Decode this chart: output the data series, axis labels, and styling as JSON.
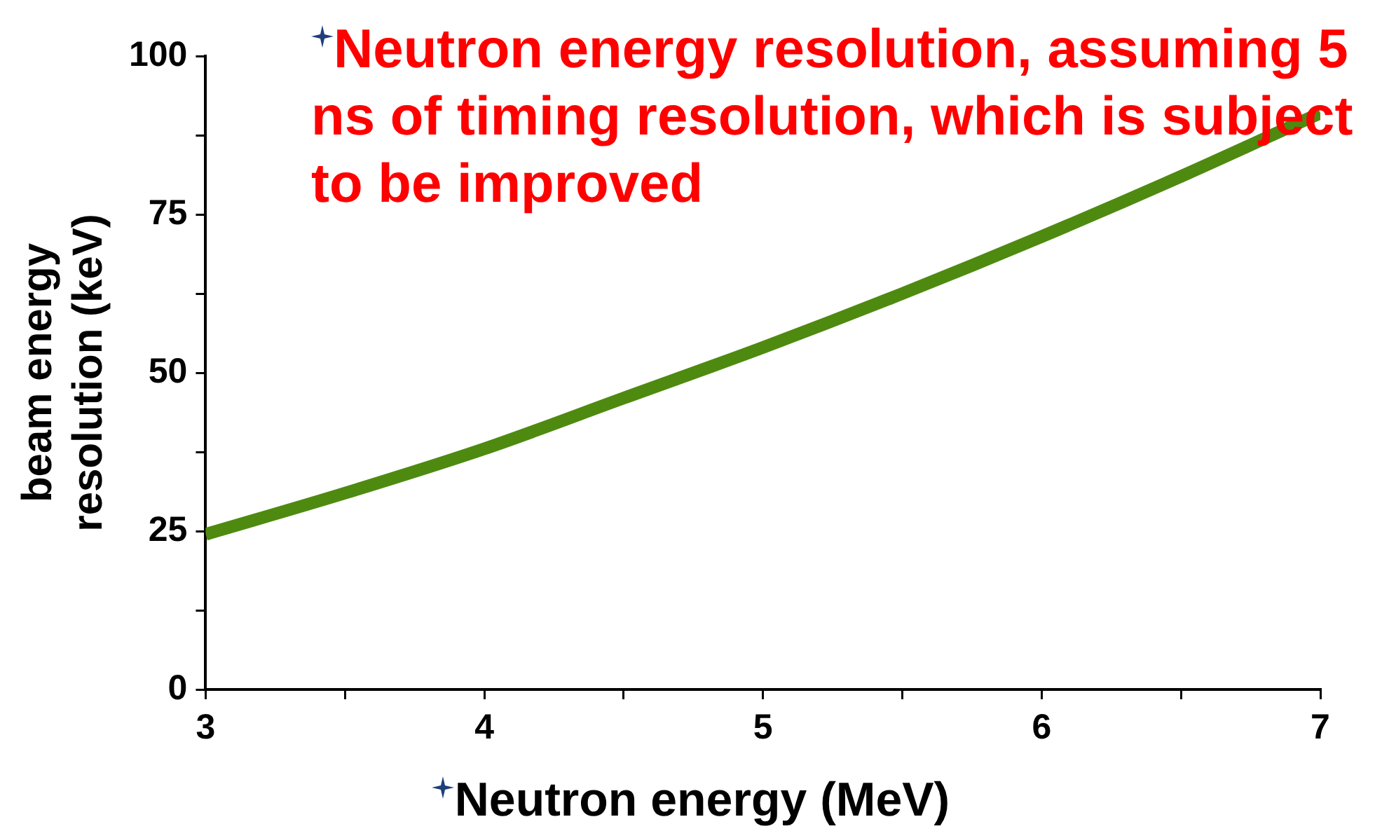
{
  "chart_data": {
    "type": "line",
    "xlabel": "Neutron energy (MeV)",
    "ylabel": "beam energy resolution (keV)",
    "annotations": [
      "Neutron energy resolution, assuming 5 ns of timing resolution, which is subject to be improved"
    ],
    "x": [
      3,
      3.5,
      4,
      4.5,
      5,
      5.5,
      6,
      6.5,
      7
    ],
    "series": [
      {
        "color": "#4e8a10",
        "values": [
          24.5,
          31,
          38,
          46,
          54,
          62.5,
          71.5,
          81,
          91
        ]
      }
    ],
    "xlim": [
      3,
      7
    ],
    "xticks": [
      3,
      {
        "value": 3.5,
        "label": null
      },
      4,
      {
        "value": 4.5,
        "label": null
      },
      5,
      {
        "value": 5.5,
        "label": null
      },
      6,
      {
        "value": 6.5,
        "label": null
      },
      7
    ],
    "ylim": [
      0,
      100
    ],
    "yticks": [
      0,
      {
        "value": 12.5,
        "label": null
      },
      25,
      {
        "value": 37.5,
        "label": null
      },
      50,
      {
        "value": 62.5,
        "label": null
      },
      75,
      {
        "value": 87.5,
        "label": null
      },
      100
    ],
    "grid": false,
    "legend": false,
    "marker": "none",
    "line_style": "solid"
  }
}
